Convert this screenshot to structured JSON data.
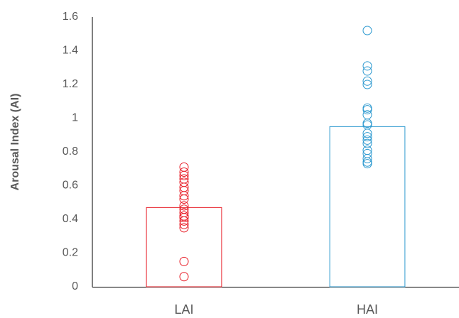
{
  "chart_data": {
    "type": "bar",
    "y_label": "Arousal Index (AI)",
    "categories": [
      "LAI",
      "HAI"
    ],
    "values": [
      0.47,
      0.95
    ],
    "colors": [
      "#e8202a",
      "#2e9ad0"
    ],
    "points": [
      [
        0.71,
        0.68,
        0.66,
        0.64,
        0.62,
        0.59,
        0.57,
        0.54,
        0.52,
        0.48,
        0.46,
        0.44,
        0.42,
        0.41,
        0.39,
        0.37,
        0.35,
        0.15,
        0.06
      ],
      [
        1.52,
        1.31,
        1.28,
        1.22,
        1.2,
        1.06,
        1.05,
        1.02,
        0.97,
        0.96,
        0.91,
        0.89,
        0.87,
        0.85,
        0.81,
        0.79,
        0.76,
        0.74,
        0.73
      ]
    ],
    "ylim": [
      0,
      1.6
    ],
    "yticks": [
      0,
      0.2,
      0.4,
      0.6,
      0.8,
      1,
      1.2,
      1.4,
      1.6
    ],
    "grid": false
  }
}
